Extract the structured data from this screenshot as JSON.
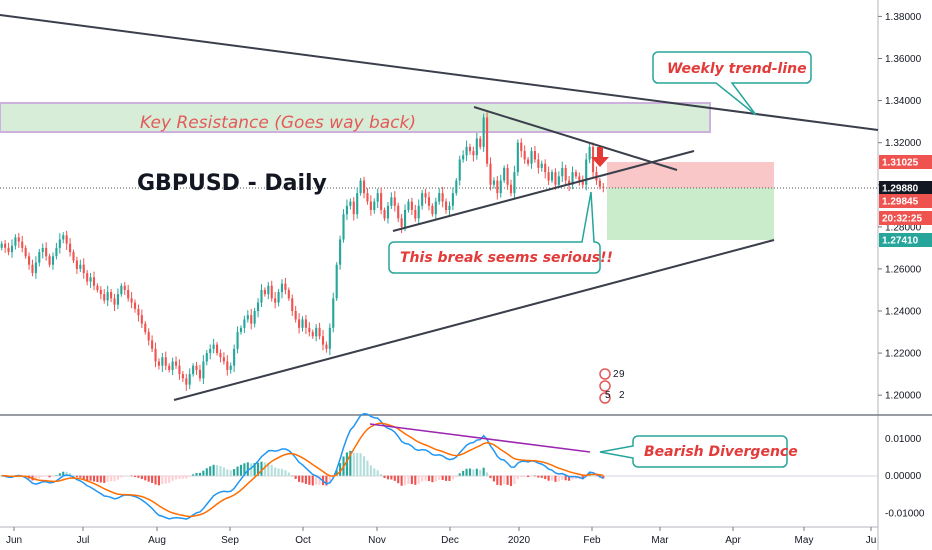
{
  "chart_data": [
    {
      "type": "candlestick",
      "title": "GBPUSD - Daily",
      "x_ticks": [
        "Jun",
        "Jul",
        "Aug",
        "Sep",
        "Oct",
        "Nov",
        "Dec",
        "2020",
        "Feb",
        "Mar",
        "Apr",
        "May",
        "Ju"
      ],
      "y_ticks": [
        "1.38000",
        "1.36000",
        "1.34000",
        "1.32000",
        "1.30000",
        "1.28000",
        "1.26000",
        "1.24000",
        "1.22000",
        "1.20000"
      ],
      "ylim": [
        1.192,
        1.384
      ],
      "close_series": [
        1.272,
        1.27,
        1.268,
        1.271,
        1.275,
        1.273,
        1.27,
        1.266,
        1.262,
        1.258,
        1.263,
        1.268,
        1.27,
        1.266,
        1.262,
        1.266,
        1.27,
        1.274,
        1.276,
        1.272,
        1.268,
        1.264,
        1.26,
        1.262,
        1.258,
        1.254,
        1.256,
        1.252,
        1.25,
        1.248,
        1.245,
        1.249,
        1.246,
        1.243,
        1.248,
        1.252,
        1.25,
        1.246,
        1.244,
        1.241,
        1.238,
        1.234,
        1.23,
        1.226,
        1.222,
        1.216,
        1.214,
        1.218,
        1.214,
        1.212,
        1.216,
        1.214,
        1.21,
        1.208,
        1.205,
        1.21,
        1.214,
        1.212,
        1.208,
        1.216,
        1.22,
        1.222,
        1.224,
        1.22,
        1.218,
        1.216,
        1.212,
        1.214,
        1.222,
        1.23,
        1.232,
        1.236,
        1.238,
        1.234,
        1.24,
        1.244,
        1.25,
        1.248,
        1.252,
        1.246,
        1.244,
        1.249,
        1.253,
        1.25,
        1.246,
        1.24,
        1.236,
        1.232,
        1.236,
        1.232,
        1.23,
        1.228,
        1.232,
        1.228,
        1.224,
        1.222,
        1.232,
        1.246,
        1.262,
        1.274,
        1.286,
        1.29,
        1.292,
        1.286,
        1.296,
        1.302,
        1.296,
        1.292,
        1.288,
        1.292,
        1.296,
        1.288,
        1.284,
        1.29,
        1.294,
        1.29,
        1.284,
        1.28,
        1.288,
        1.292,
        1.288,
        1.284,
        1.29,
        1.296,
        1.294,
        1.29,
        1.286,
        1.292,
        1.296,
        1.292,
        1.288,
        1.29,
        1.296,
        1.302,
        1.312,
        1.314,
        1.318,
        1.316,
        1.314,
        1.322,
        1.318,
        1.332,
        1.31,
        1.3,
        1.302,
        1.296,
        1.302,
        1.308,
        1.3,
        1.296,
        1.306,
        1.32,
        1.316,
        1.312,
        1.31,
        1.316,
        1.312,
        1.308,
        1.31,
        1.306,
        1.302,
        1.306,
        1.3,
        1.304,
        1.308,
        1.302,
        1.3,
        1.306,
        1.304,
        1.302,
        1.3,
        1.312,
        1.318,
        1.306,
        1.302,
        1.299,
        1.2988
      ],
      "lines": [
        "Weekly trend-line",
        "Key Resistance (Goes way back)",
        "This break seems serious!!"
      ],
      "price_tags": [
        {
          "label": "1.31025",
          "color": "#ef5350"
        },
        {
          "label": "1.29880",
          "color": "#131722"
        },
        {
          "label": "1.29845",
          "color": "#ef5350"
        },
        {
          "label": "20:32:25",
          "color": "#ef5350"
        },
        {
          "label": "1.27410",
          "color": "#26a69a"
        }
      ],
      "annotations": {
        "weekly": "Weekly trend-line",
        "resistance": "Key Resistance (Goes way back)",
        "break": "This break seems serious!!"
      },
      "colors": {
        "up": "#26a69a",
        "down": "#ef5350",
        "trend": "#3a3f4b"
      }
    },
    {
      "type": "macd",
      "y_ticks": [
        "0.01000",
        "0.00000",
        "-0.01000"
      ],
      "ylim": [
        -0.013,
        0.0155
      ],
      "annotation": "Bearish Divergence"
    }
  ]
}
